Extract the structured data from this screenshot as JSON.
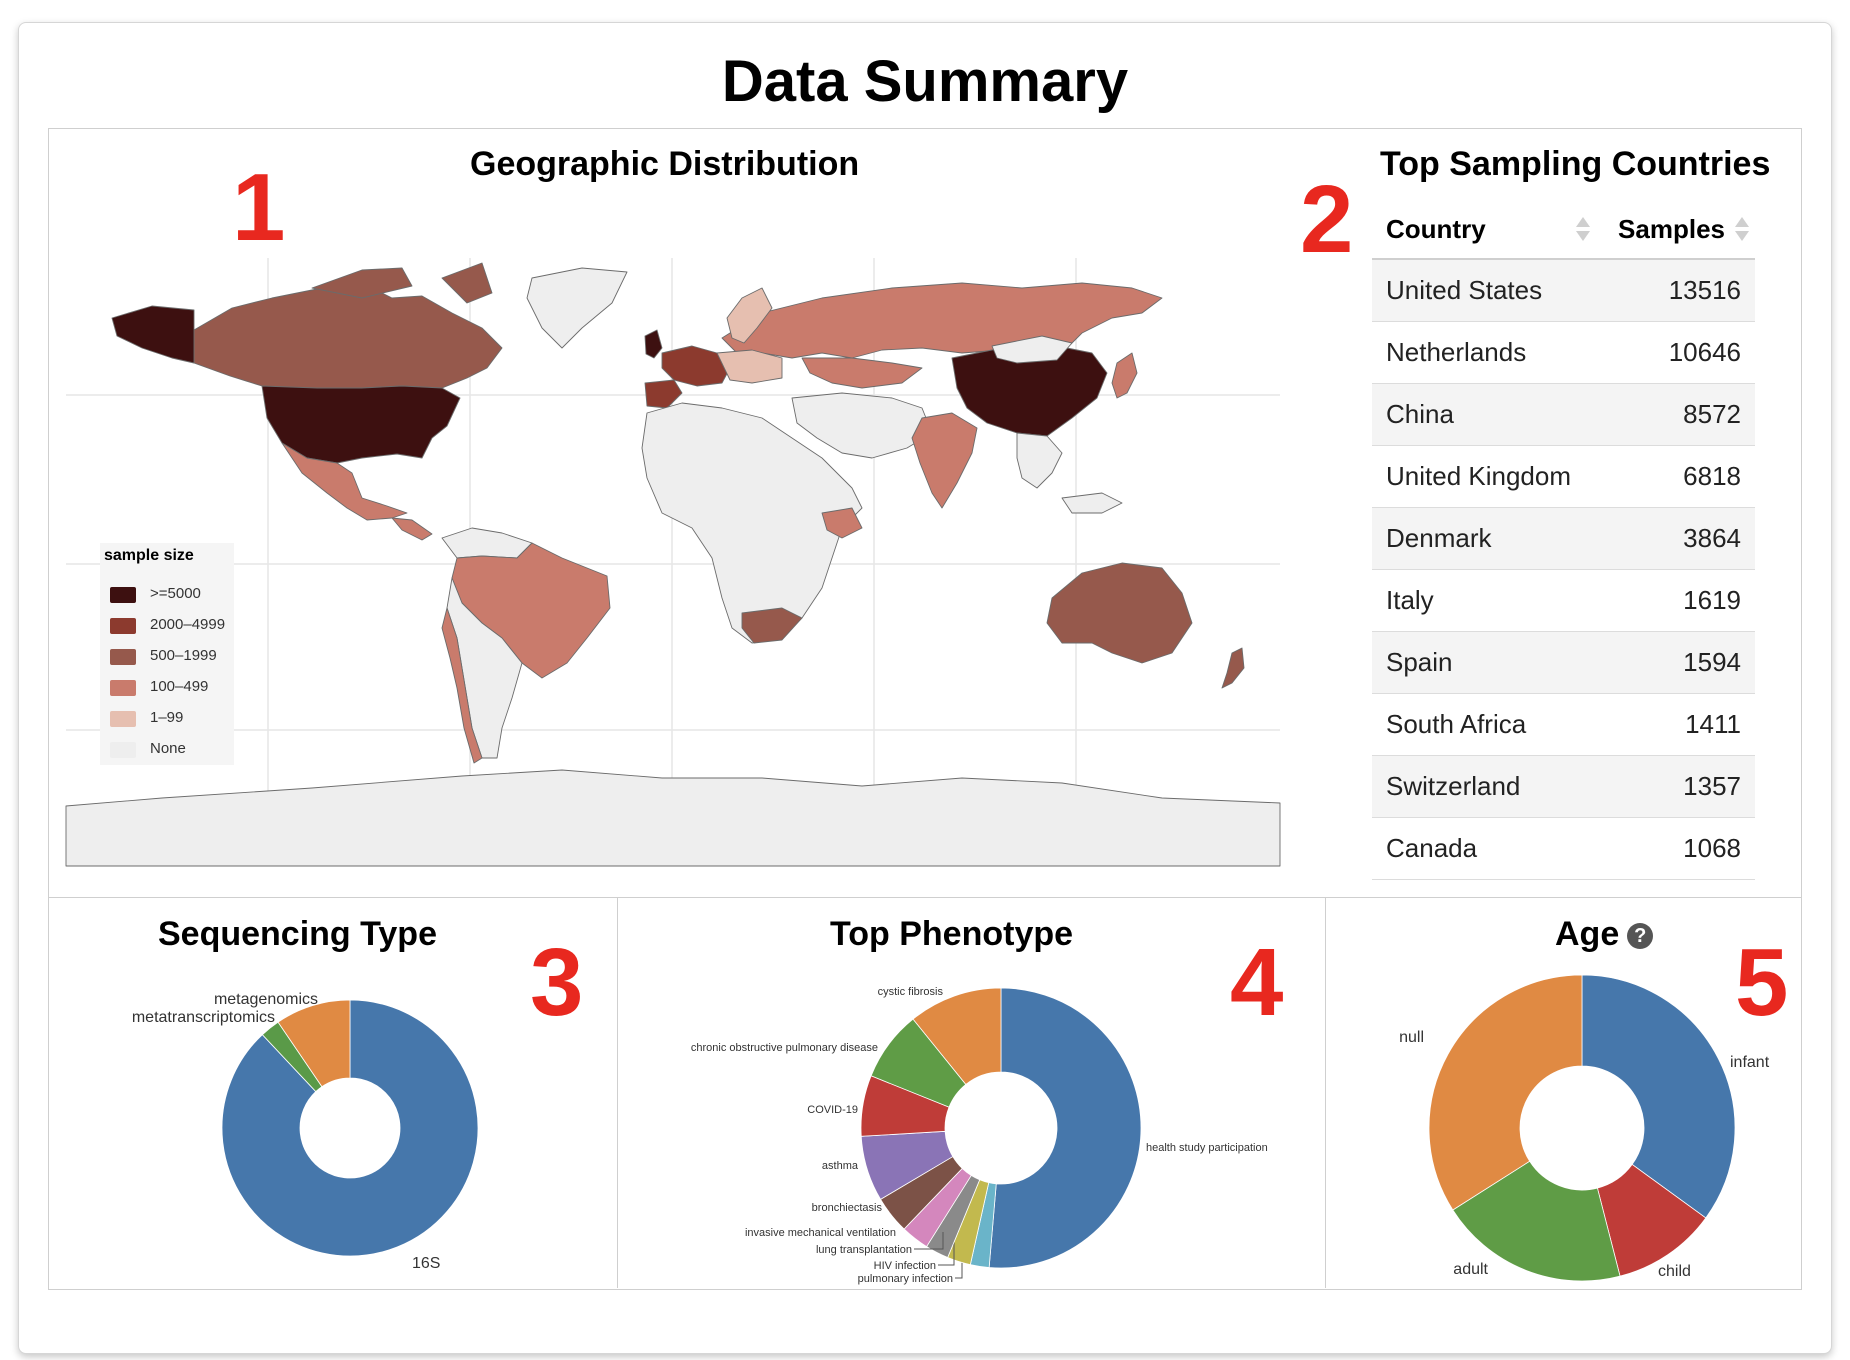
{
  "header": {
    "title": "Data Summary"
  },
  "panel_numbers": [
    "1",
    "2",
    "3",
    "4",
    "5"
  ],
  "map": {
    "title": "Geographic Distribution",
    "legend_title": "sample size",
    "legend": [
      {
        "label": ">=5000",
        "color": "#3d1010"
      },
      {
        "label": "2000–4999",
        "color": "#8c3a2e"
      },
      {
        "label": "500–1999",
        "color": "#96594c"
      },
      {
        "label": "100–499",
        "color": "#c97b6c"
      },
      {
        "label": "1–99",
        "color": "#e6bfb0"
      },
      {
        "label": "None",
        "color": "#eeeeee"
      }
    ]
  },
  "table": {
    "title": "Top Sampling Countries",
    "columns": [
      "Country",
      "Samples"
    ],
    "rows": [
      {
        "country": "United States",
        "samples": "13516"
      },
      {
        "country": "Netherlands",
        "samples": "10646"
      },
      {
        "country": "China",
        "samples": "8572"
      },
      {
        "country": "United Kingdom",
        "samples": "6818"
      },
      {
        "country": "Denmark",
        "samples": "3864"
      },
      {
        "country": "Italy",
        "samples": "1619"
      },
      {
        "country": "Spain",
        "samples": "1594"
      },
      {
        "country": "South Africa",
        "samples": "1411"
      },
      {
        "country": "Switzerland",
        "samples": "1357"
      },
      {
        "country": "Canada",
        "samples": "1068"
      }
    ]
  },
  "chart_data": [
    {
      "type": "pie",
      "title": "Sequencing Type",
      "labels": [
        "16S",
        "metatranscriptomics",
        "metagenomics"
      ],
      "values": [
        88,
        2.5,
        9.5
      ],
      "colors": [
        "#4677ab",
        "#5a9a48",
        "#e08a43"
      ]
    },
    {
      "type": "pie",
      "title": "Top Phenotype",
      "labels": [
        "health study participation",
        "pulmonary infection",
        "HIV infection",
        "lung transplantation",
        "invasive mechanical ventilation",
        "bronchiectasis",
        "asthma",
        "COVID-19",
        "chronic obstructive pulmonary disease",
        "cystic fibrosis"
      ],
      "values": [
        47.5,
        2,
        2.5,
        2.5,
        3,
        4,
        7,
        6.5,
        7.5,
        10
      ],
      "colors": [
        "#4677ab",
        "#6ab4c9",
        "#c2b94e",
        "#8a8a8a",
        "#d487bd",
        "#7c5247",
        "#8a74b6",
        "#bf3c38",
        "#5f9c46",
        "#e08a43"
      ]
    },
    {
      "type": "pie",
      "title": "Age",
      "labels": [
        "infant",
        "child",
        "adult",
        "null"
      ],
      "values": [
        35,
        11,
        20,
        34
      ],
      "colors": [
        "#4677ab",
        "#bf3c38",
        "#5f9c46",
        "#e08a43"
      ]
    }
  ],
  "age_help": "?"
}
